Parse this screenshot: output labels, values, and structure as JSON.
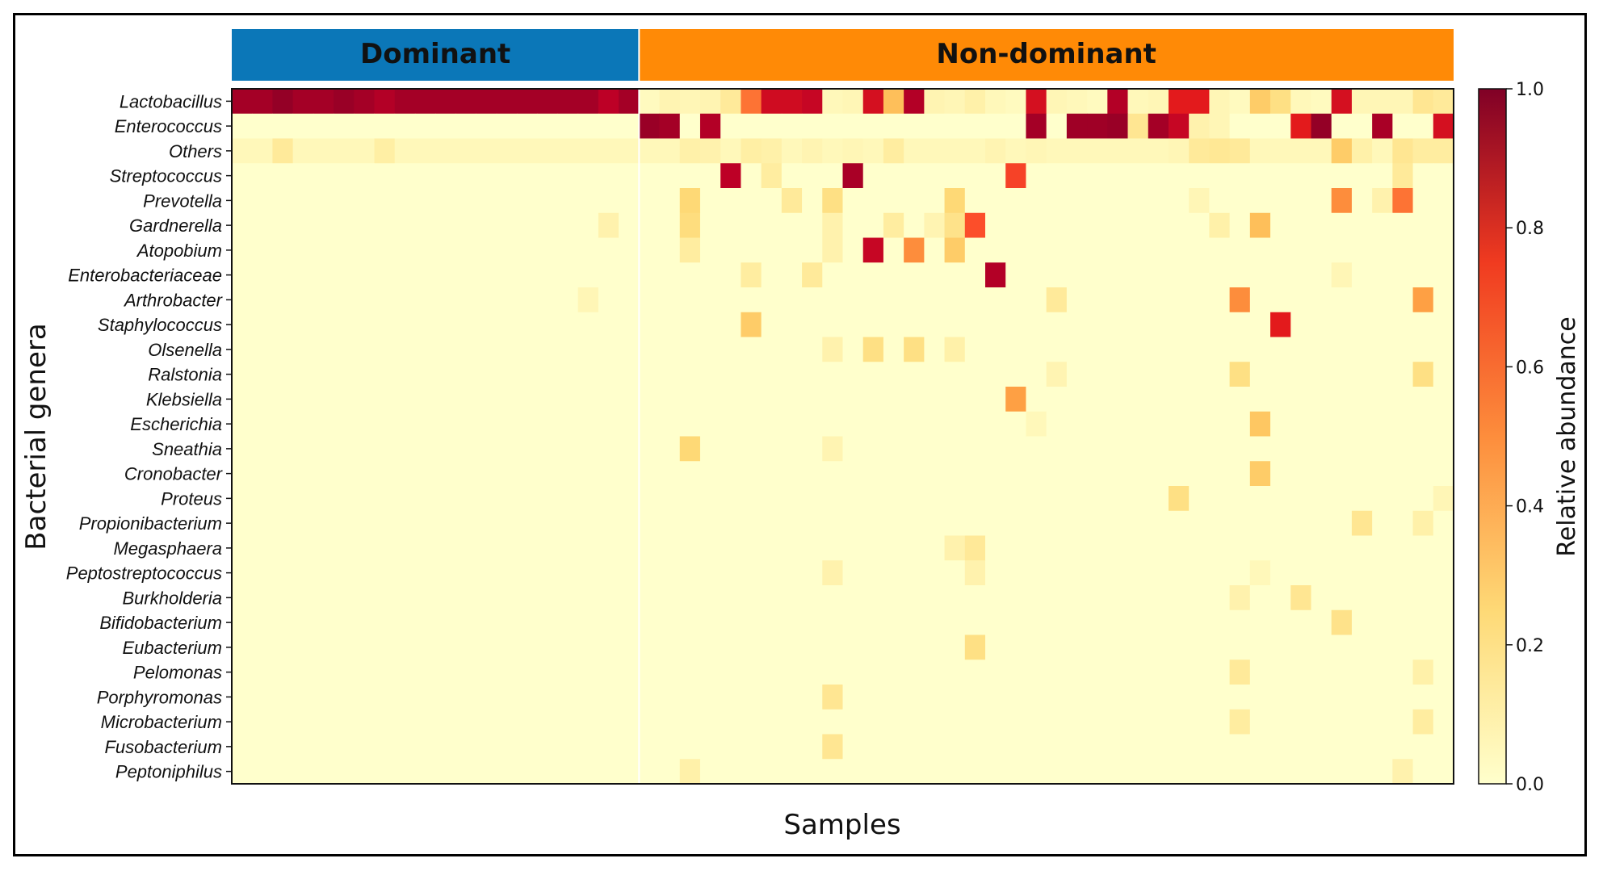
{
  "chart_data": {
    "type": "heatmap",
    "groups": [
      {
        "name": "Dominant",
        "n_samples": 20,
        "color": "#0b77b8"
      },
      {
        "name": "Non-dominant",
        "n_samples": 40,
        "color": "#ff8a06"
      }
    ],
    "xlabel": "Samples",
    "ylabel": "Bacterial genera",
    "colorbar": {
      "label": "Relative abundance",
      "vmin": 0.0,
      "vmax": 1.0,
      "ticks": [
        "0.0",
        "0.2",
        "0.4",
        "0.6",
        "0.8",
        "1.0"
      ],
      "colormap": "YlOrRd"
    },
    "rows": [
      "Lactobacillus",
      "Enterococcus",
      "Others",
      "Streptococcus",
      "Prevotella",
      "Gardnerella",
      "Atopobium",
      "Enterobacteriaceae",
      "Arthrobacter",
      "Staphylococcus",
      "Olsenella",
      "Ralstonia",
      "Klebsiella",
      "Escherichia",
      "Sneathia",
      "Cronobacter",
      "Proteus",
      "Propionibacterium",
      "Megasphaera",
      "Peptostreptococcus",
      "Burkholderia",
      "Bifidobacterium",
      "Eubacterium",
      "Pelomonas",
      "Porphyromonas",
      "Microbacterium",
      "Fusobacterium",
      "Peptoniphilus"
    ],
    "n_columns": 60,
    "default_value": 0.0,
    "row_fill": [
      {
        "row": 0,
        "cols": [
          0,
          19
        ],
        "value": 0.93
      },
      {
        "row": 2,
        "cols": [
          0,
          59
        ],
        "value": 0.04
      }
    ],
    "cells": [
      [
        0,
        2,
        0.96
      ],
      [
        0,
        5,
        0.95
      ],
      [
        0,
        7,
        0.9
      ],
      [
        0,
        18,
        0.88
      ],
      [
        0,
        20,
        0.03
      ],
      [
        0,
        21,
        0.06
      ],
      [
        0,
        22,
        0.05
      ],
      [
        0,
        23,
        0.06
      ],
      [
        0,
        24,
        0.12
      ],
      [
        0,
        25,
        0.55
      ],
      [
        0,
        26,
        0.82
      ],
      [
        0,
        27,
        0.82
      ],
      [
        0,
        28,
        0.85
      ],
      [
        0,
        29,
        0.04
      ],
      [
        0,
        30,
        0.05
      ],
      [
        0,
        31,
        0.8
      ],
      [
        0,
        32,
        0.35
      ],
      [
        0,
        33,
        0.9
      ],
      [
        0,
        34,
        0.06
      ],
      [
        0,
        35,
        0.05
      ],
      [
        0,
        36,
        0.08
      ],
      [
        0,
        37,
        0.04
      ],
      [
        0,
        38,
        0.03
      ],
      [
        0,
        39,
        0.8
      ],
      [
        0,
        40,
        0.05
      ],
      [
        0,
        41,
        0.04
      ],
      [
        0,
        42,
        0.03
      ],
      [
        0,
        43,
        0.9
      ],
      [
        0,
        44,
        0.04
      ],
      [
        0,
        45,
        0.05
      ],
      [
        0,
        46,
        0.75
      ],
      [
        0,
        47,
        0.75
      ],
      [
        0,
        48,
        0.05
      ],
      [
        0,
        49,
        0.03
      ],
      [
        0,
        50,
        0.3
      ],
      [
        0,
        51,
        0.2
      ],
      [
        0,
        52,
        0.04
      ],
      [
        0,
        53,
        0.03
      ],
      [
        0,
        54,
        0.8
      ],
      [
        0,
        55,
        0.05
      ],
      [
        0,
        56,
        0.05
      ],
      [
        0,
        57,
        0.05
      ],
      [
        0,
        58,
        0.15
      ],
      [
        0,
        59,
        0.12
      ],
      [
        1,
        20,
        0.95
      ],
      [
        1,
        21,
        0.93
      ],
      [
        1,
        23,
        0.9
      ],
      [
        1,
        39,
        0.93
      ],
      [
        1,
        41,
        0.94
      ],
      [
        1,
        42,
        0.94
      ],
      [
        1,
        43,
        0.95
      ],
      [
        1,
        44,
        0.15
      ],
      [
        1,
        45,
        0.93
      ],
      [
        1,
        46,
        0.85
      ],
      [
        1,
        47,
        0.07
      ],
      [
        1,
        48,
        0.05
      ],
      [
        1,
        52,
        0.75
      ],
      [
        1,
        53,
        0.96
      ],
      [
        1,
        56,
        0.92
      ],
      [
        1,
        59,
        0.8
      ],
      [
        2,
        2,
        0.12
      ],
      [
        2,
        7,
        0.09
      ],
      [
        2,
        22,
        0.08
      ],
      [
        2,
        23,
        0.07
      ],
      [
        2,
        25,
        0.09
      ],
      [
        2,
        26,
        0.08
      ],
      [
        2,
        28,
        0.06
      ],
      [
        2,
        30,
        0.05
      ],
      [
        2,
        32,
        0.1
      ],
      [
        2,
        37,
        0.06
      ],
      [
        2,
        39,
        0.05
      ],
      [
        2,
        44,
        0.04
      ],
      [
        2,
        46,
        0.05
      ],
      [
        2,
        47,
        0.12
      ],
      [
        2,
        48,
        0.14
      ],
      [
        2,
        49,
        0.12
      ],
      [
        2,
        54,
        0.3
      ],
      [
        2,
        55,
        0.08
      ],
      [
        2,
        57,
        0.15
      ],
      [
        2,
        58,
        0.1
      ],
      [
        2,
        59,
        0.1
      ],
      [
        3,
        24,
        0.88
      ],
      [
        3,
        26,
        0.1
      ],
      [
        3,
        30,
        0.92
      ],
      [
        3,
        38,
        0.65
      ],
      [
        3,
        57,
        0.12
      ],
      [
        4,
        22,
        0.25
      ],
      [
        4,
        27,
        0.12
      ],
      [
        4,
        29,
        0.2
      ],
      [
        4,
        35,
        0.25
      ],
      [
        4,
        47,
        0.05
      ],
      [
        4,
        54,
        0.5
      ],
      [
        4,
        56,
        0.07
      ],
      [
        4,
        57,
        0.55
      ],
      [
        5,
        18,
        0.07
      ],
      [
        5,
        22,
        0.22
      ],
      [
        5,
        29,
        0.07
      ],
      [
        5,
        32,
        0.1
      ],
      [
        5,
        34,
        0.06
      ],
      [
        5,
        35,
        0.18
      ],
      [
        5,
        36,
        0.62
      ],
      [
        5,
        48,
        0.08
      ],
      [
        5,
        50,
        0.35
      ],
      [
        6,
        22,
        0.1
      ],
      [
        6,
        29,
        0.07
      ],
      [
        6,
        31,
        0.85
      ],
      [
        6,
        33,
        0.5
      ],
      [
        6,
        35,
        0.3
      ],
      [
        7,
        25,
        0.1
      ],
      [
        7,
        28,
        0.12
      ],
      [
        7,
        37,
        0.9
      ],
      [
        7,
        54,
        0.05
      ],
      [
        8,
        17,
        0.05
      ],
      [
        8,
        40,
        0.12
      ],
      [
        8,
        49,
        0.5
      ],
      [
        8,
        58,
        0.45
      ],
      [
        9,
        25,
        0.3
      ],
      [
        9,
        51,
        0.75
      ],
      [
        10,
        29,
        0.07
      ],
      [
        10,
        31,
        0.2
      ],
      [
        10,
        33,
        0.2
      ],
      [
        10,
        35,
        0.08
      ],
      [
        11,
        40,
        0.06
      ],
      [
        11,
        49,
        0.2
      ],
      [
        11,
        58,
        0.2
      ],
      [
        12,
        38,
        0.45
      ],
      [
        13,
        39,
        0.04
      ],
      [
        13,
        50,
        0.32
      ],
      [
        14,
        22,
        0.25
      ],
      [
        14,
        29,
        0.06
      ],
      [
        15,
        50,
        0.3
      ],
      [
        16,
        46,
        0.2
      ],
      [
        16,
        59,
        0.05
      ],
      [
        17,
        55,
        0.15
      ],
      [
        17,
        58,
        0.08
      ],
      [
        18,
        35,
        0.07
      ],
      [
        18,
        36,
        0.13
      ],
      [
        19,
        29,
        0.07
      ],
      [
        19,
        36,
        0.07
      ],
      [
        19,
        50,
        0.04
      ],
      [
        20,
        49,
        0.07
      ],
      [
        20,
        52,
        0.15
      ],
      [
        21,
        54,
        0.18
      ],
      [
        22,
        36,
        0.2
      ],
      [
        23,
        49,
        0.12
      ],
      [
        23,
        58,
        0.08
      ],
      [
        24,
        29,
        0.15
      ],
      [
        25,
        49,
        0.1
      ],
      [
        25,
        58,
        0.1
      ],
      [
        26,
        29,
        0.15
      ],
      [
        27,
        22,
        0.08
      ],
      [
        27,
        57,
        0.07
      ]
    ]
  }
}
